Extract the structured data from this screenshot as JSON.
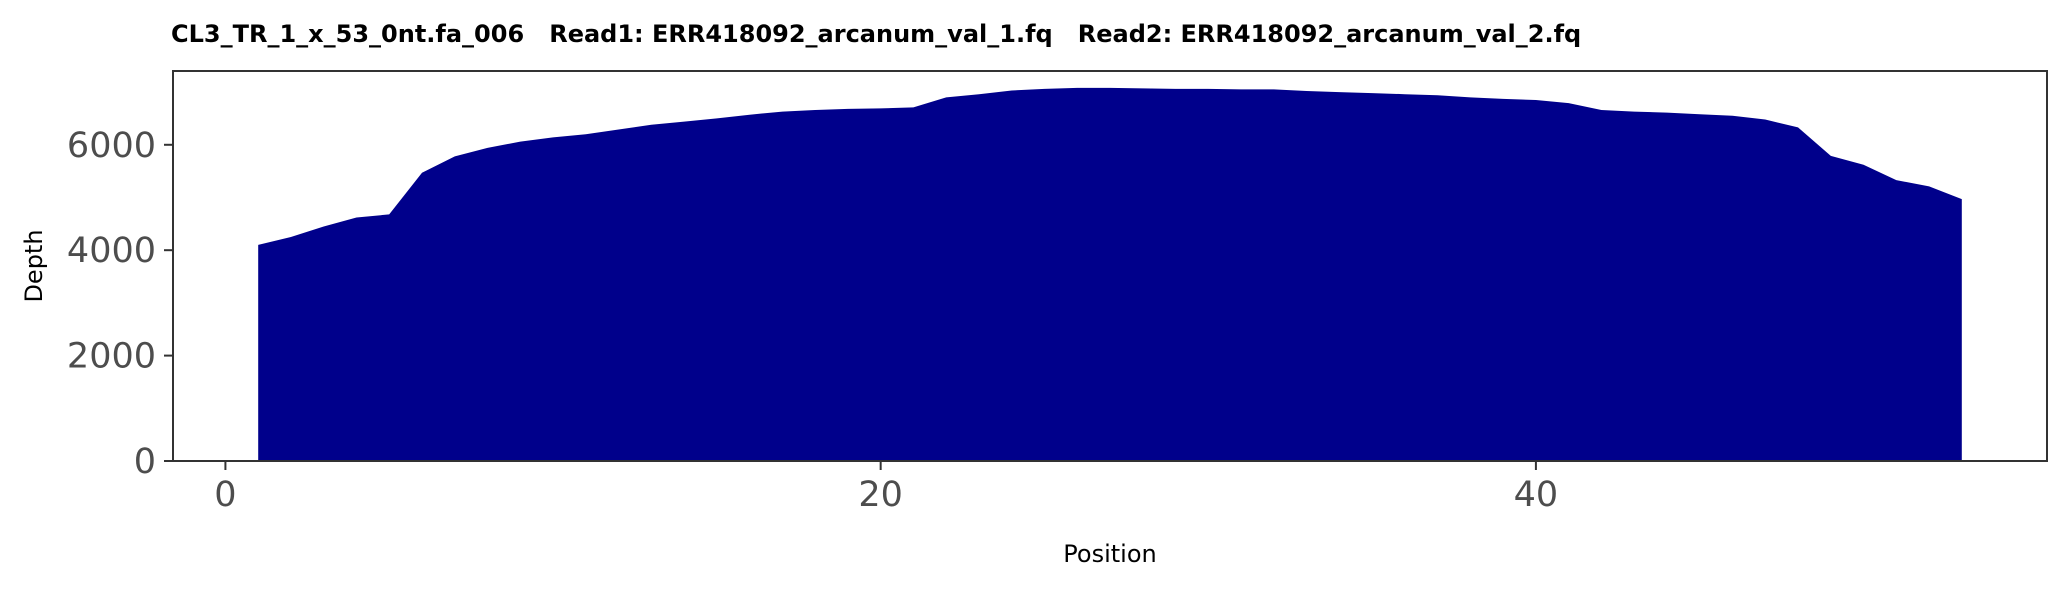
{
  "chart_data": {
    "type": "area",
    "title": "CL3_TR_1_x_53_0nt.fa_006   Read1: ERR418092_arcanum_val_1.fq   Read2: ERR418092_arcanum_val_2.fq",
    "xlabel": "Position",
    "ylabel": "Depth",
    "xlim": [
      -1.6,
      55.6
    ],
    "ylim": [
      0,
      7400
    ],
    "x_ticks": [
      0,
      20,
      40
    ],
    "y_ticks": [
      0,
      2000,
      4000,
      6000
    ],
    "fill_color": "#00008B",
    "grid": false,
    "legend": "none",
    "x": [
      1,
      2,
      3,
      4,
      5,
      6,
      7,
      8,
      9,
      10,
      11,
      12,
      13,
      14,
      15,
      16,
      17,
      18,
      19,
      20,
      21,
      22,
      23,
      24,
      25,
      26,
      27,
      28,
      29,
      30,
      31,
      32,
      33,
      34,
      35,
      36,
      37,
      38,
      39,
      40,
      41,
      42,
      43,
      44,
      45,
      46,
      47,
      48,
      49,
      50,
      51,
      52,
      53
    ],
    "y": [
      4100,
      4250,
      4450,
      4620,
      4680,
      5470,
      5780,
      5940,
      6060,
      6140,
      6200,
      6290,
      6380,
      6440,
      6500,
      6570,
      6630,
      6660,
      6680,
      6690,
      6710,
      6900,
      6960,
      7030,
      7060,
      7080,
      7080,
      7070,
      7060,
      7060,
      7050,
      7050,
      7020,
      7000,
      6980,
      6960,
      6940,
      6900,
      6870,
      6850,
      6790,
      6660,
      6630,
      6610,
      6580,
      6550,
      6480,
      6330,
      5790,
      5620,
      5330,
      5210,
      4970
    ]
  }
}
